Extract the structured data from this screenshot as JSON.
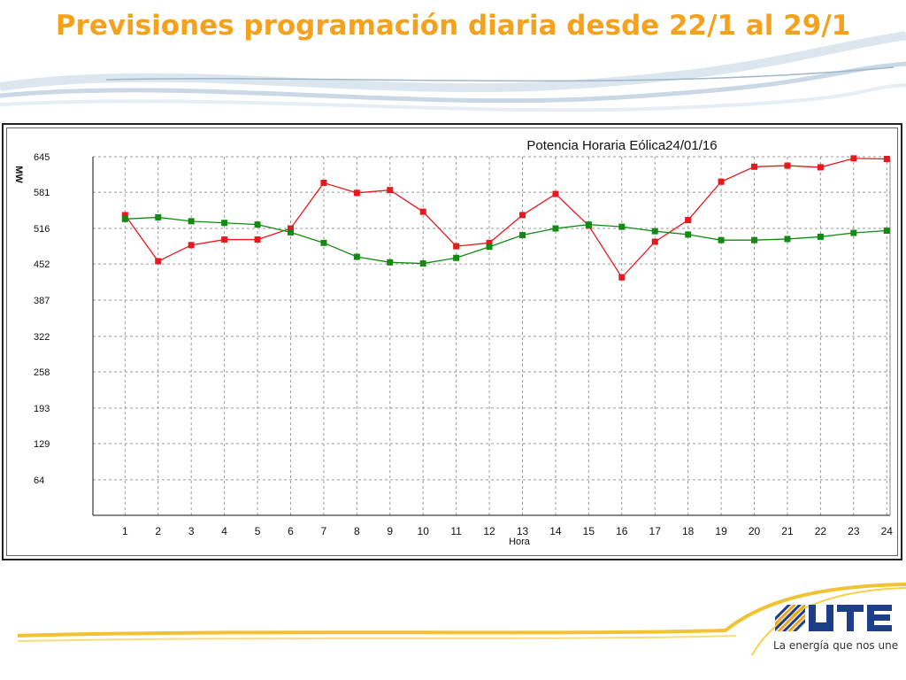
{
  "slide": {
    "title": "Previsiones programación diaria desde 22/1 al 29/1"
  },
  "logo": {
    "brand": "UTE",
    "tagline": "La energía que nos une"
  },
  "colors": {
    "title": "#f4a11d",
    "series_red": "#e8181e",
    "series_green": "#138a13",
    "grid": "#9a9a9a"
  },
  "chart_data": {
    "type": "line",
    "title": "Potencia Horaria Eólica24/01/16",
    "xlabel": "Hora",
    "ylabel": "MW",
    "grid": true,
    "legend": "none",
    "ylim": [
      0,
      645
    ],
    "y_ticks": [
      64,
      129,
      193,
      258,
      322,
      387,
      452,
      516,
      581,
      645
    ],
    "x": [
      1,
      2,
      3,
      4,
      5,
      6,
      7,
      8,
      9,
      10,
      11,
      12,
      13,
      14,
      15,
      16,
      17,
      18,
      19,
      20,
      21,
      22,
      23,
      24
    ],
    "series": [
      {
        "color": "#e8181e",
        "values": [
          540,
          457,
          486,
          496,
          496,
          516,
          598,
          580,
          585,
          546,
          484,
          490,
          540,
          578,
          521,
          428,
          492,
          531,
          600,
          627,
          629,
          626,
          642,
          641
        ]
      },
      {
        "color": "#138a13",
        "values": [
          533,
          536,
          529,
          526,
          523,
          509,
          490,
          465,
          455,
          453,
          463,
          483,
          504,
          516,
          523,
          519,
          511,
          505,
          495,
          495,
          497,
          501,
          508,
          512
        ]
      }
    ]
  }
}
